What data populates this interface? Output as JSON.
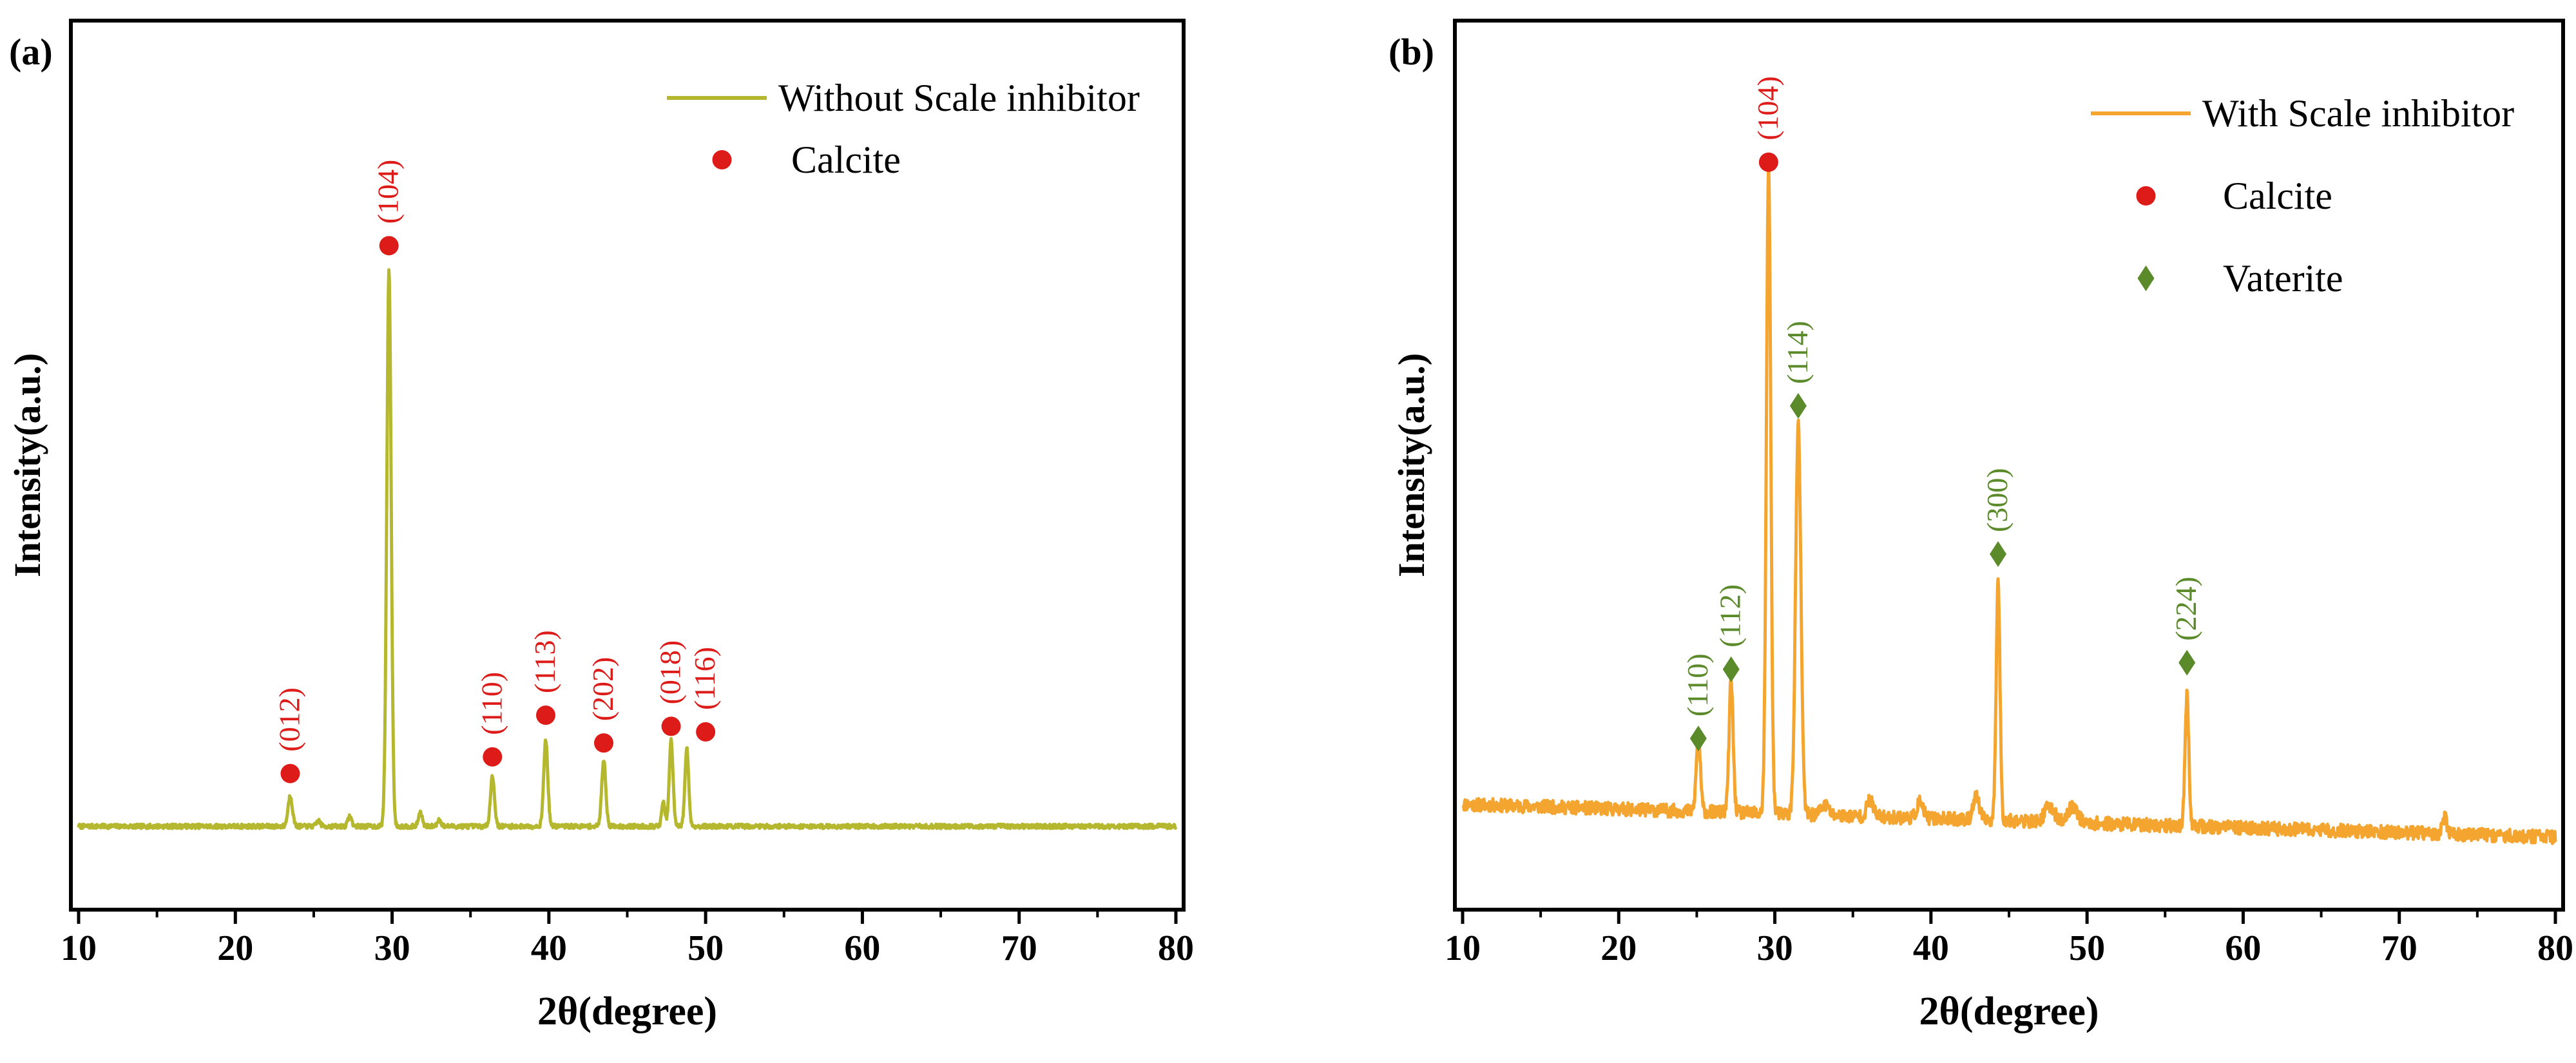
{
  "chart_data": [
    {
      "type": "line",
      "panel_label": "(a)",
      "xlabel": "2θ(degree)",
      "ylabel": "Intensity(a.u.)",
      "xlim": [
        10,
        80
      ],
      "ylim": [
        -0.15,
        1.45
      ],
      "x_ticks": [
        "10",
        "20",
        "30",
        "40",
        "50",
        "60",
        "70",
        "80"
      ],
      "series": [
        {
          "name": "Without Scale inhibitor",
          "color": "#b5b82e",
          "baseline": 0.0,
          "noise": 0.004,
          "seed": 7,
          "peaks": [
            {
              "x": 23.5,
              "h": 0.055,
              "w": 0.14
            },
            {
              "x": 25.3,
              "h": 0.01,
              "w": 0.12
            },
            {
              "x": 27.3,
              "h": 0.018,
              "w": 0.12
            },
            {
              "x": 29.8,
              "h": 1.0,
              "w": 0.14
            },
            {
              "x": 31.8,
              "h": 0.025,
              "w": 0.12
            },
            {
              "x": 33.0,
              "h": 0.012,
              "w": 0.12
            },
            {
              "x": 36.4,
              "h": 0.09,
              "w": 0.13
            },
            {
              "x": 39.8,
              "h": 0.155,
              "w": 0.13
            },
            {
              "x": 43.5,
              "h": 0.12,
              "w": 0.13
            },
            {
              "x": 47.3,
              "h": 0.045,
              "w": 0.1
            },
            {
              "x": 47.8,
              "h": 0.155,
              "w": 0.12
            },
            {
              "x": 48.8,
              "h": 0.14,
              "w": 0.12
            }
          ]
        }
      ],
      "markers": [
        {
          "x": 23.5,
          "y": 0.095,
          "shape": "circle",
          "color": "#dd1c1a",
          "hkl": "(012)"
        },
        {
          "x": 29.8,
          "y": 1.045,
          "shape": "circle",
          "color": "#dd1c1a",
          "hkl": "(104)"
        },
        {
          "x": 36.4,
          "y": 0.125,
          "shape": "circle",
          "color": "#dd1c1a",
          "hkl": "(110)"
        },
        {
          "x": 39.8,
          "y": 0.2,
          "shape": "circle",
          "color": "#dd1c1a",
          "hkl": "(113)"
        },
        {
          "x": 43.5,
          "y": 0.15,
          "shape": "circle",
          "color": "#dd1c1a",
          "hkl": "(202)"
        },
        {
          "x": 47.8,
          "y": 0.18,
          "shape": "circle",
          "color": "#dd1c1a",
          "hkl": "(018)"
        },
        {
          "x": 50.0,
          "y": 0.17,
          "shape": "circle",
          "color": "#dd1c1a",
          "hkl": "(116)"
        }
      ],
      "legend": [
        {
          "kind": "line",
          "label": "Without Scale inhibitor",
          "color": "#b5b82e"
        },
        {
          "kind": "circle",
          "label": "Calcite",
          "color": "#dd1c1a"
        }
      ],
      "legend_position": "top-right"
    },
    {
      "type": "line",
      "panel_label": "(b)",
      "xlabel": "2θ(degree)",
      "ylabel": "Intensity(a.u.)",
      "xlim": [
        10,
        80
      ],
      "ylim": [
        -0.12,
        1.23
      ],
      "x_ticks": [
        "10",
        "20",
        "30",
        "40",
        "50",
        "60",
        "70",
        "80"
      ],
      "series": [
        {
          "name": "With Scale inhibitor",
          "color": "#f3a530",
          "baseline_start": 0.04,
          "baseline_end": -0.01,
          "noise": 0.01,
          "seed": 11,
          "peaks": [
            {
              "x": 25.1,
              "h": 0.115,
              "w": 0.13
            },
            {
              "x": 27.2,
              "h": 0.2,
              "w": 0.13
            },
            {
              "x": 29.6,
              "h": 0.98,
              "w": 0.14
            },
            {
              "x": 31.5,
              "h": 0.59,
              "w": 0.17
            },
            {
              "x": 33.2,
              "h": 0.015,
              "w": 0.25
            },
            {
              "x": 36.1,
              "h": 0.025,
              "w": 0.2
            },
            {
              "x": 39.3,
              "h": 0.025,
              "w": 0.2
            },
            {
              "x": 42.9,
              "h": 0.035,
              "w": 0.2
            },
            {
              "x": 44.3,
              "h": 0.37,
              "w": 0.12
            },
            {
              "x": 47.6,
              "h": 0.025,
              "w": 0.3
            },
            {
              "x": 49.1,
              "h": 0.025,
              "w": 0.3
            },
            {
              "x": 56.4,
              "h": 0.2,
              "w": 0.12
            },
            {
              "x": 72.9,
              "h": 0.025,
              "w": 0.15
            }
          ]
        }
      ],
      "markers": [
        {
          "x": 25.1,
          "y": 0.14,
          "shape": "diamond",
          "color": "#5a8a2a",
          "hkl": "(110)"
        },
        {
          "x": 27.2,
          "y": 0.245,
          "shape": "diamond",
          "color": "#5a8a2a",
          "hkl": "(112)"
        },
        {
          "x": 29.6,
          "y": 1.015,
          "shape": "circle",
          "color": "#dd1c1a",
          "hkl": "(104)"
        },
        {
          "x": 31.5,
          "y": 0.645,
          "shape": "diamond",
          "color": "#5a8a2a",
          "hkl": "(114)"
        },
        {
          "x": 44.3,
          "y": 0.42,
          "shape": "diamond",
          "color": "#5a8a2a",
          "hkl": "(300)"
        },
        {
          "x": 56.4,
          "y": 0.255,
          "shape": "diamond",
          "color": "#5a8a2a",
          "hkl": "(224)"
        }
      ],
      "legend": [
        {
          "kind": "line",
          "label": "With Scale inhibitor",
          "color": "#f3a530"
        },
        {
          "kind": "circle",
          "label": "Calcite",
          "color": "#dd1c1a"
        },
        {
          "kind": "diamond",
          "label": "Vaterite",
          "color": "#5a8a2a"
        }
      ],
      "legend_position": "top-right"
    }
  ]
}
